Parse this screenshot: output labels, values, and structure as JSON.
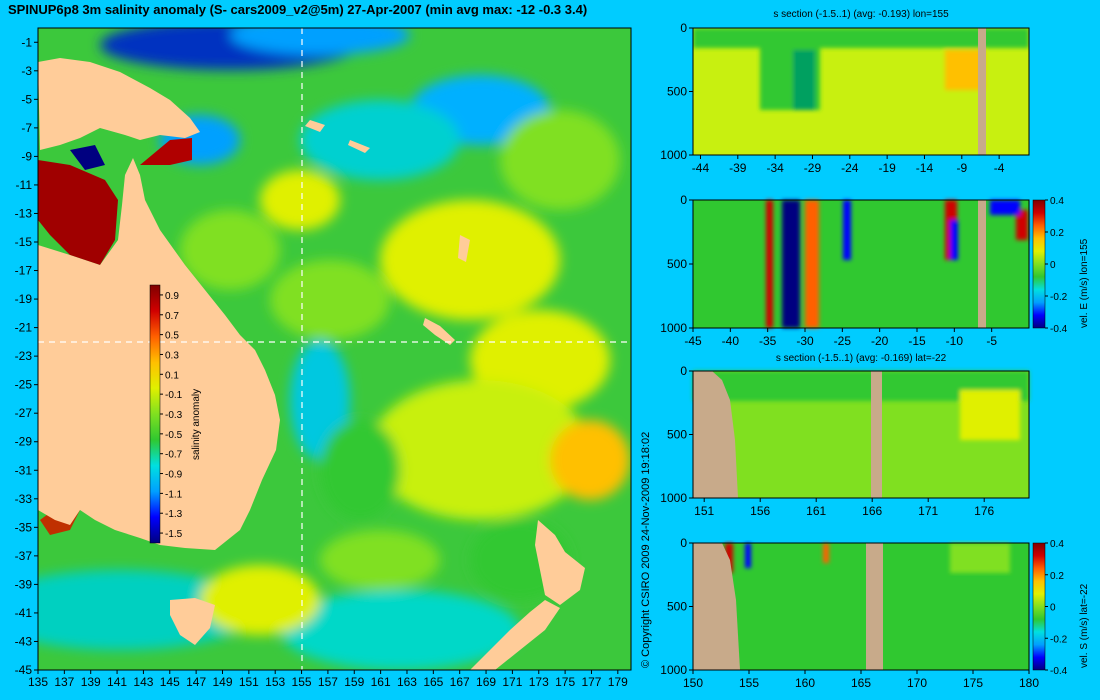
{
  "title": "SPINUP6p8 3m salinity anomaly (S- cars2009_v2@5m) 27-Apr-2007 (min avg max: -12 -0.3 3.4)",
  "copyright": "© Copyright CSIRO 2009   24-Nov-2009 19:18:02",
  "colors": {
    "background": "#00ccff",
    "land": "#ffcc99",
    "section_land": "#c8aa8a",
    "ocean_base": "#3cc83c",
    "crosshair": "#ffffff"
  },
  "colormap": [
    "#000080",
    "#0000ff",
    "#00a0ff",
    "#00e0e0",
    "#30c830",
    "#80e020",
    "#e0f000",
    "#ffc000",
    "#ff6000",
    "#d00000",
    "#800000"
  ],
  "chart_data": [
    {
      "type": "heatmap",
      "panel": "map",
      "xlabel": "",
      "ylabel": "",
      "x_ticks": [
        "135",
        "137",
        "139",
        "141",
        "143",
        "145",
        "147",
        "149",
        "151",
        "153",
        "155",
        "157",
        "159",
        "161",
        "163",
        "165",
        "167",
        "169",
        "171",
        "173",
        "175",
        "177",
        "179"
      ],
      "y_ticks": [
        "-1",
        "-3",
        "-5",
        "-7",
        "-9",
        "-11",
        "-13",
        "-15",
        "-17",
        "-19",
        "-21",
        "-23",
        "-25",
        "-27",
        "-29",
        "-31",
        "-33",
        "-35",
        "-37",
        "-39",
        "-41",
        "-43",
        "-45"
      ],
      "xlim": [
        135,
        180
      ],
      "ylim": [
        -45,
        0
      ],
      "crosshair": {
        "lon": 155,
        "lat": -22
      },
      "colorbar": {
        "label": "salinity anomaly",
        "ticks": [
          "0.9",
          "0.7",
          "0.5",
          "0.3",
          "0.1",
          "-0.1",
          "-0.3",
          "-0.5",
          "-0.7",
          "-0.9",
          "-1.1",
          "-1.3",
          "-1.5"
        ],
        "range": [
          -1.6,
          1.0
        ]
      }
    },
    {
      "type": "heatmap",
      "panel": "section1",
      "title": "s section (-1.5..1) (avg: -0.193) lon=155",
      "x_ticks": [
        "-44",
        "-39",
        "-34",
        "-29",
        "-24",
        "-19",
        "-14",
        "-9",
        "-4"
      ],
      "y_ticks": [
        "0",
        "500",
        "1000"
      ],
      "xlim": [
        -45,
        0
      ],
      "ylim": [
        1000,
        0
      ]
    },
    {
      "type": "heatmap",
      "panel": "section2",
      "title": "",
      "x_ticks": [
        "-45",
        "-40",
        "-35",
        "-30",
        "-25",
        "-20",
        "-15",
        "-10",
        "-5"
      ],
      "y_ticks": [
        "0",
        "500",
        "1000"
      ],
      "xlim": [
        -45,
        0
      ],
      "ylim": [
        1000,
        0
      ],
      "colorbar": {
        "label": "vel. E (m/s) lon=155",
        "ticks": [
          "0.4",
          "0.2",
          "0",
          "-0.2",
          "-0.4"
        ],
        "range": [
          -0.4,
          0.4
        ]
      }
    },
    {
      "type": "heatmap",
      "panel": "section3",
      "title": "s section (-1.5..1) (avg: -0.169) lat=-22",
      "x_ticks": [
        "151",
        "156",
        "161",
        "166",
        "171",
        "176"
      ],
      "y_ticks": [
        "0",
        "500",
        "1000"
      ],
      "xlim": [
        150,
        180
      ],
      "ylim": [
        1000,
        0
      ]
    },
    {
      "type": "heatmap",
      "panel": "section4",
      "title": "",
      "x_ticks": [
        "150",
        "155",
        "160",
        "165",
        "170",
        "175",
        "180"
      ],
      "y_ticks": [
        "0",
        "500",
        "1000"
      ],
      "xlim": [
        150,
        180
      ],
      "ylim": [
        1000,
        0
      ],
      "colorbar": {
        "label": "vel. S (m/s) lat=-22",
        "ticks": [
          "0.4",
          "0.2",
          "0",
          "-0.2",
          "-0.4"
        ],
        "range": [
          -0.4,
          0.4
        ]
      }
    }
  ]
}
